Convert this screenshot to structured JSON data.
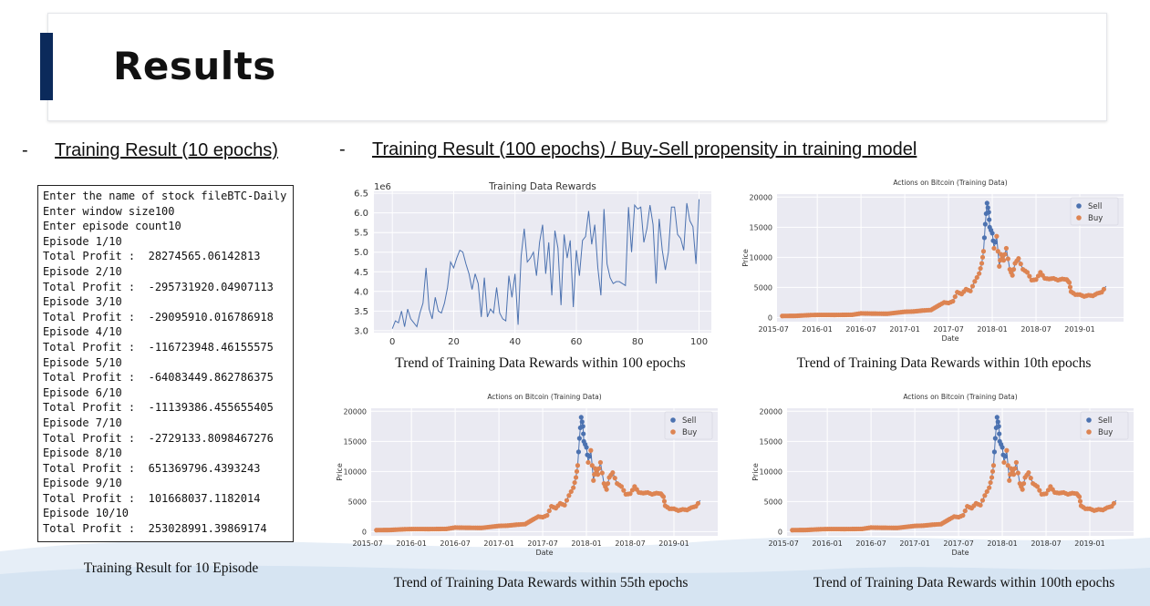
{
  "slide": {
    "title": "Results",
    "left_bullet": "-",
    "left_heading": "Training Result (10 epochs)",
    "right_bullet": "-",
    "right_heading": "Training Result (100 epochs) / Buy-Sell propensity in training model"
  },
  "console": {
    "lines": [
      "Enter the name of stock fileBTC-Daily",
      "Enter window size100",
      "Enter episode count10",
      "Episode 1/10",
      "Total Profit :  28274565.06142813",
      "Episode 2/10",
      "Total Profit :  -295731920.04907113",
      "Episode 3/10",
      "Total Profit :  -29095910.016786918",
      "Episode 4/10",
      "Total Profit :  -116723948.46155575",
      "Episode 5/10",
      "Total Profit :  -64083449.862786375",
      "Episode 6/10",
      "Total Profit :  -11139386.455655405",
      "Episode 7/10",
      "Total Profit :  -2729133.8098467276",
      "Episode 8/10",
      "Total Profit :  651369796.4393243",
      "Episode 9/10",
      "Total Profit :  101668037.1182014",
      "Episode 10/10",
      "Total Profit :  253028991.39869174"
    ],
    "caption": "Training Result for 10 Episode"
  },
  "captions": {
    "rewards": "Trend of Training Data Rewards within 100 epochs",
    "ep10": "Trend of Training Data Rewards within 10th epochs",
    "ep55": "Trend of Training Data Rewards within 55th epochs",
    "ep100": "Trend of Training Data Rewards within 100th epochs"
  },
  "colors": {
    "title_bar": "#0b2a5b",
    "line": "#4c72b0",
    "sell": "#4c72b0",
    "buy": "#dd8452",
    "plot_bg": "#eaeaf2"
  },
  "chart_data": [
    {
      "id": "rewards",
      "type": "line",
      "title": "Training Data Rewards",
      "offset_label": "1e6",
      "xlabel": "",
      "ylabel": "",
      "xlim": [
        -6,
        104
      ],
      "ylim": [
        2.95,
        6.55
      ],
      "xticks": [
        0,
        20,
        40,
        60,
        80,
        100
      ],
      "yticks": [
        3.0,
        3.5,
        4.0,
        4.5,
        5.0,
        5.5,
        6.0,
        6.5
      ],
      "x_start": 0,
      "values": [
        3.05,
        3.25,
        3.2,
        3.5,
        3.1,
        3.55,
        3.3,
        3.2,
        3.1,
        3.45,
        3.7,
        4.6,
        3.55,
        3.3,
        3.85,
        3.5,
        3.45,
        3.7,
        4.1,
        4.75,
        4.6,
        4.85,
        5.05,
        5.0,
        4.7,
        4.45,
        4.05,
        4.45,
        4.2,
        3.35,
        4.35,
        3.35,
        3.55,
        3.45,
        4.1,
        3.45,
        3.3,
        3.25,
        4.4,
        3.85,
        4.45,
        3.15,
        4.9,
        5.6,
        4.75,
        4.85,
        5.0,
        4.4,
        5.25,
        5.7,
        4.45,
        5.25,
        3.9,
        5.55,
        5.1,
        3.65,
        5.45,
        4.85,
        5.3,
        3.6,
        5.05,
        4.4,
        5.3,
        5.4,
        6.05,
        5.2,
        5.7,
        4.6,
        3.9,
        6.1,
        4.7,
        4.35,
        4.2,
        4.25,
        4.25,
        4.2,
        4.15,
        6.15,
        5.0,
        6.2,
        6.1,
        6.15,
        5.25,
        5.6,
        6.2,
        5.7,
        4.2,
        5.85,
        5.05,
        4.55,
        5.0,
        6.15,
        6.15,
        5.45,
        5.35,
        5.05,
        6.25,
        5.8,
        5.65,
        4.7,
        6.35
      ],
      "grid": true
    },
    {
      "id": "ep10",
      "type": "scatter",
      "title": "Actions on Bitcoin (Training Data)",
      "xlabel": "Date",
      "ylabel": "Price",
      "xlim": [
        2015.54,
        2019.5
      ],
      "ylim": [
        -700,
        20500
      ],
      "xticks": [
        "2015-07",
        "2016-01",
        "2016-07",
        "2017-01",
        "2017-07",
        "2018-01",
        "2018-07",
        "2019-01"
      ],
      "yticks": [
        0,
        5000,
        10000,
        15000,
        20000
      ],
      "legend": "upper right",
      "series": [
        {
          "name": "Sell"
        },
        {
          "name": "Buy"
        }
      ],
      "grid": true
    },
    {
      "id": "ep55",
      "type": "scatter",
      "title": "Actions on Bitcoin (Training Data)",
      "xlabel": "Date",
      "ylabel": "Price",
      "xlim": [
        2015.54,
        2019.5
      ],
      "ylim": [
        -700,
        20500
      ],
      "xticks": [
        "2015-07",
        "2016-01",
        "2016-07",
        "2017-01",
        "2017-07",
        "2018-01",
        "2018-07",
        "2019-01"
      ],
      "yticks": [
        0,
        5000,
        10000,
        15000,
        20000
      ],
      "legend": "upper right",
      "series": [
        {
          "name": "Sell"
        },
        {
          "name": "Buy"
        }
      ],
      "grid": true
    },
    {
      "id": "ep100",
      "type": "scatter",
      "title": "Actions on Bitcoin (Training Data)",
      "xlabel": "Date",
      "ylabel": "Price",
      "xlim": [
        2015.54,
        2019.5
      ],
      "ylim": [
        -700,
        20500
      ],
      "xticks": [
        "2015-07",
        "2016-01",
        "2016-07",
        "2017-01",
        "2017-07",
        "2018-01",
        "2018-07",
        "2019-01"
      ],
      "yticks": [
        0,
        5000,
        10000,
        15000,
        20000
      ],
      "legend": "upper right",
      "series": [
        {
          "name": "Sell"
        },
        {
          "name": "Buy"
        }
      ],
      "grid": true
    }
  ],
  "price_series": {
    "x": [
      2015.6,
      2015.75,
      2015.9,
      2016.0,
      2016.2,
      2016.4,
      2016.5,
      2016.6,
      2016.8,
      2017.0,
      2017.1,
      2017.2,
      2017.3,
      2017.4,
      2017.45,
      2017.5,
      2017.55,
      2017.6,
      2017.65,
      2017.7,
      2017.75,
      2017.8,
      2017.85,
      2017.88,
      2017.9,
      2017.92,
      2017.94,
      2017.96,
      2017.97,
      2018.0,
      2018.02,
      2018.05,
      2018.08,
      2018.1,
      2018.13,
      2018.16,
      2018.2,
      2018.23,
      2018.26,
      2018.3,
      2018.35,
      2018.4,
      2018.45,
      2018.5,
      2018.55,
      2018.6,
      2018.65,
      2018.7,
      2018.75,
      2018.8,
      2018.85,
      2018.88,
      2018.9,
      2018.95,
      2019.0,
      2019.05,
      2019.1,
      2019.15,
      2019.2,
      2019.25,
      2019.3
    ],
    "y": [
      250,
      270,
      380,
      430,
      420,
      450,
      680,
      650,
      620,
      950,
      1000,
      1150,
      1250,
      2100,
      2500,
      2400,
      2700,
      4200,
      3900,
      4700,
      4400,
      6000,
      7300,
      9000,
      11000,
      15500,
      19000,
      17500,
      15000,
      14000,
      11500,
      13500,
      8500,
      10500,
      9500,
      11500,
      8000,
      7000,
      9000,
      9800,
      8000,
      7500,
      6200,
      6300,
      7500,
      6500,
      6400,
      6500,
      6200,
      6400,
      6300,
      5800,
      4300,
      3800,
      3800,
      3500,
      3700,
      3600,
      4000,
      4200,
      5200
    ]
  }
}
